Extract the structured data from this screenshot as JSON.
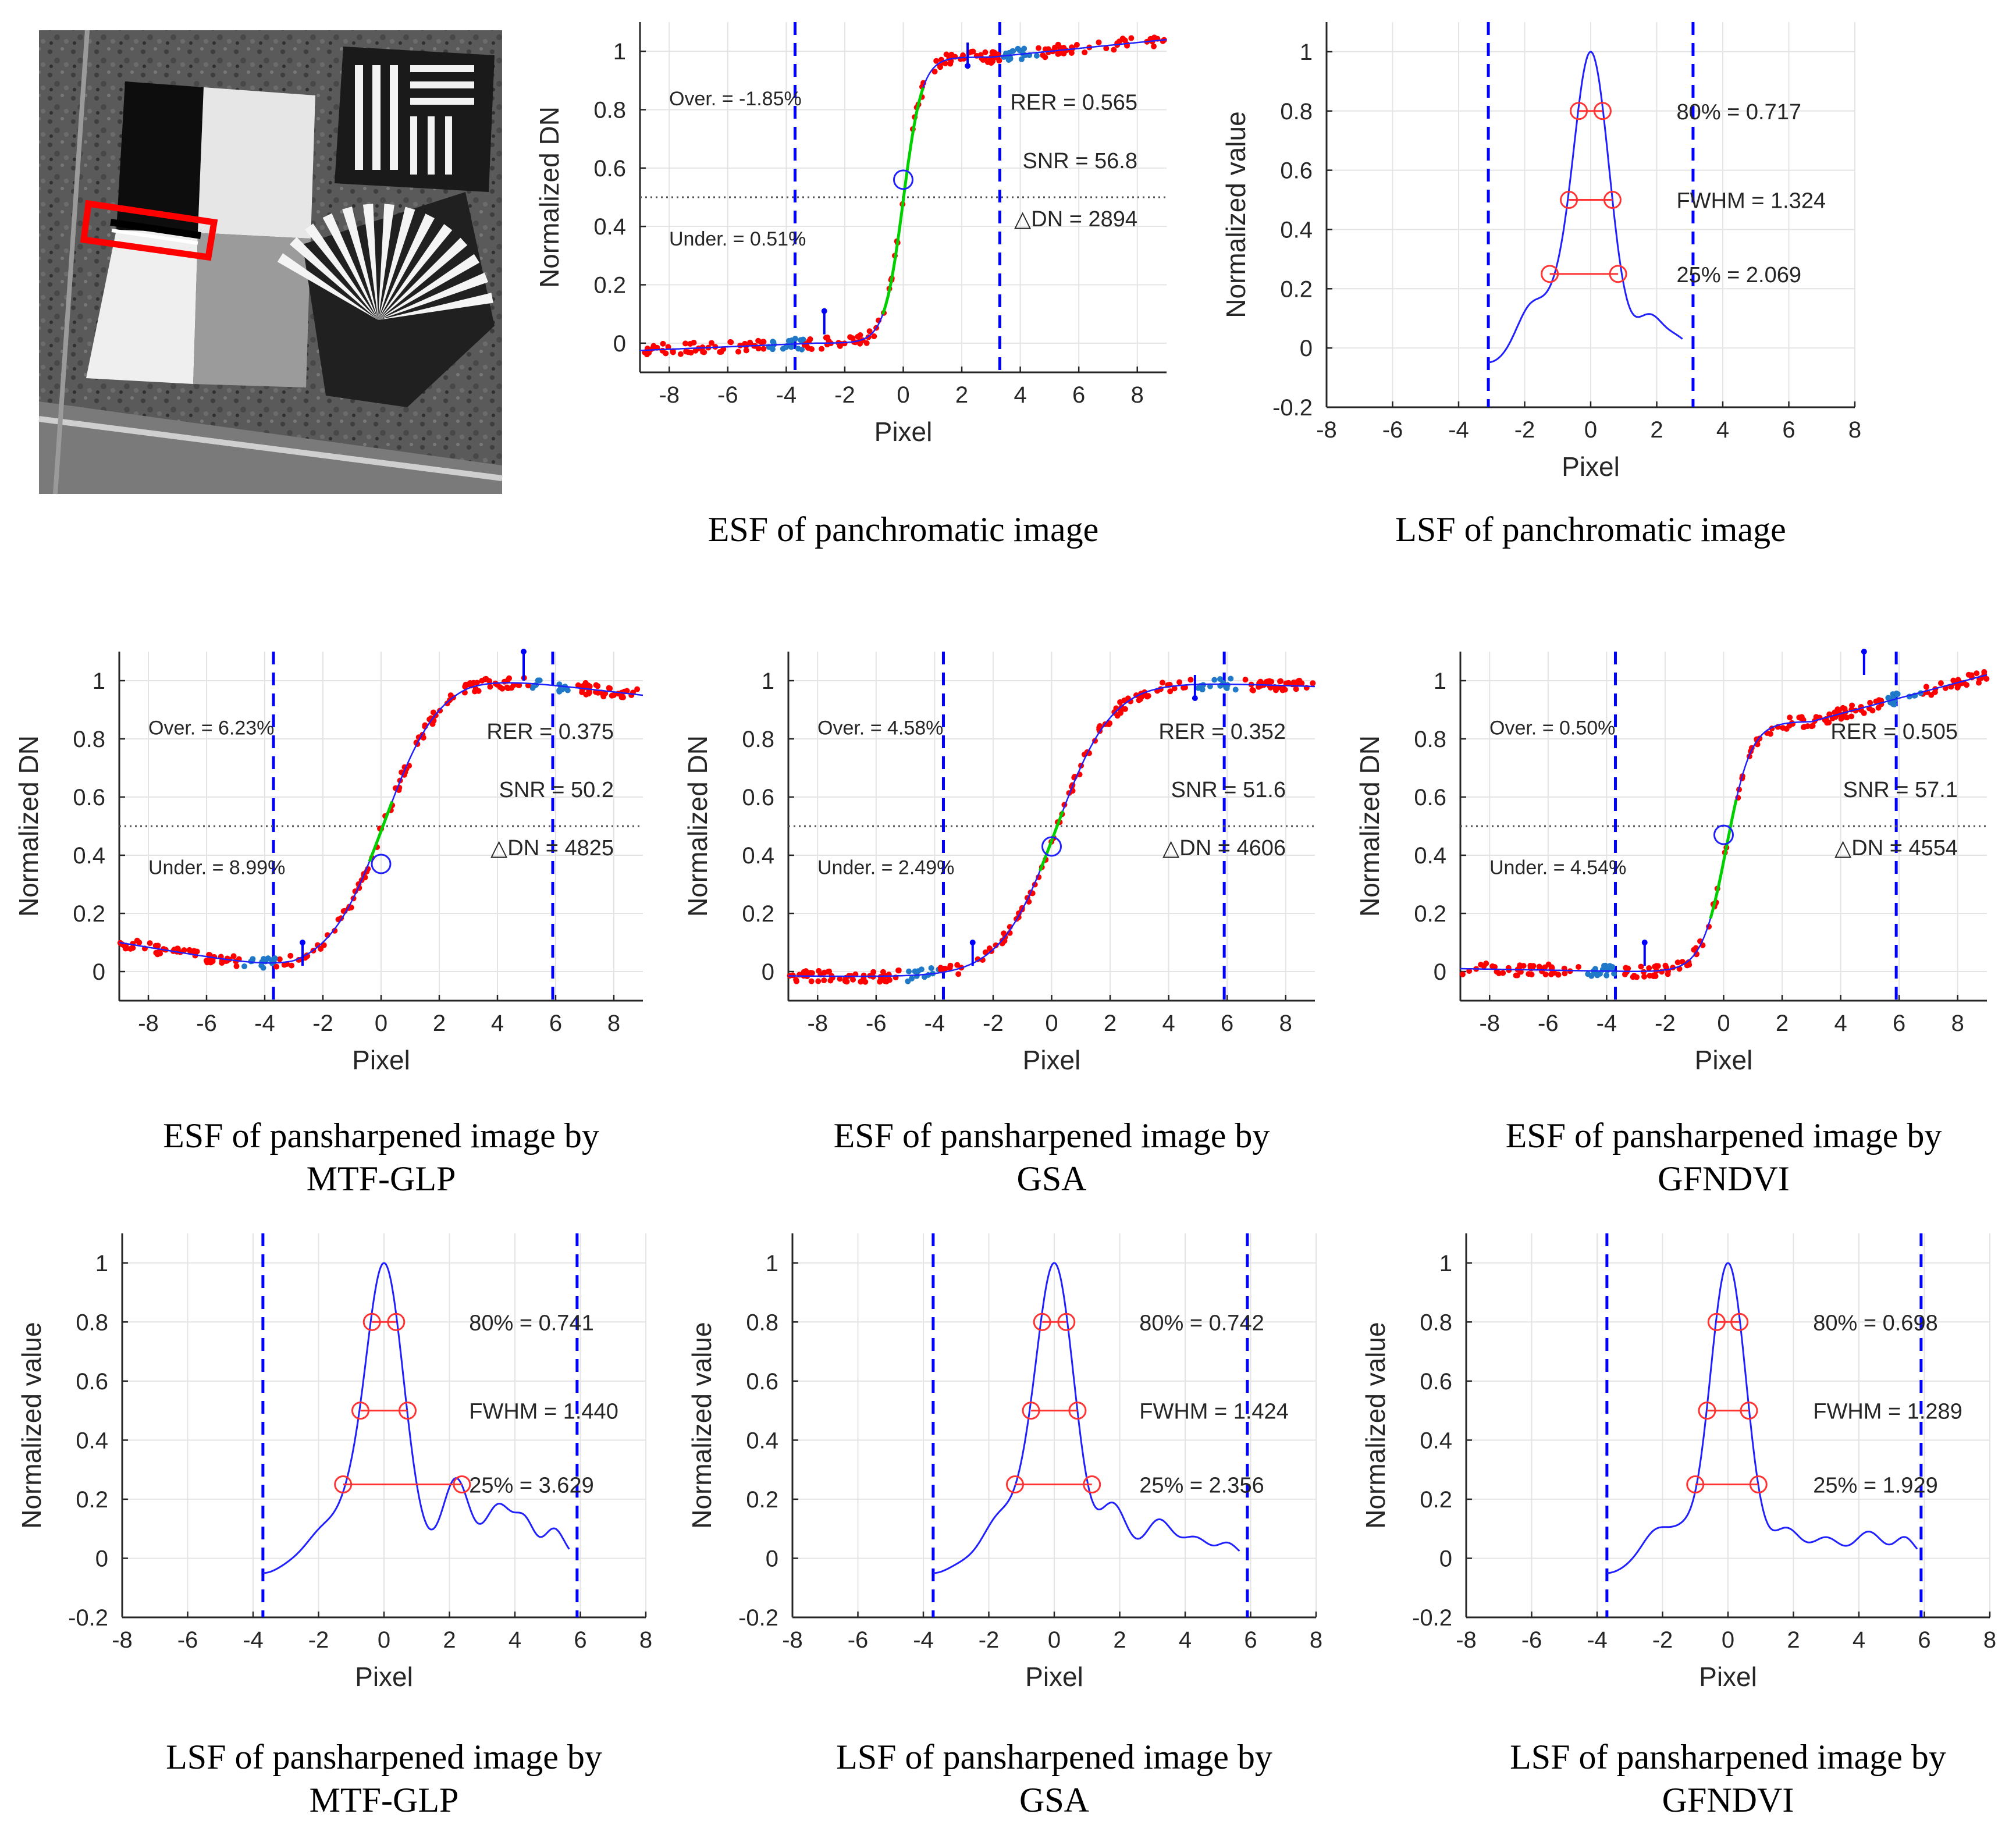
{
  "figure": {
    "thumbnail": {
      "highlight_color": "#ff0000"
    },
    "colors": {
      "axis": "#262626",
      "grid": "#e4e4e4",
      "fit_curve": "#2020ff",
      "dashed_lines": "#0000ff",
      "red_points": "#ff0000",
      "blue_points": "#1f78c8",
      "green_segment": "#00d000",
      "lsf_markers": "#ff3333",
      "threshold_line": "#555555"
    }
  },
  "chart_data": [
    {
      "id": "esf-pan",
      "type": "scatter",
      "caption": [
        "ESF of panchromatic image"
      ],
      "xlabel": "Pixel",
      "ylabel": "Normalized DN",
      "xlim": [
        -9,
        9
      ],
      "ylim": [
        -0.1,
        1.1
      ],
      "xticks": [
        -8,
        -6,
        -4,
        -2,
        0,
        2,
        4,
        6,
        8
      ],
      "yticks": [
        0,
        0.2,
        0.4,
        0.6,
        0.8,
        1
      ],
      "grid": true,
      "curve": {
        "center": 0,
        "width": 0.32,
        "lowLeft": -0.025,
        "lowRight": 0.0,
        "highLeft": 0.98,
        "highRight": 1.04,
        "point_count": 220
      },
      "half_max_marker": {
        "x": 0,
        "y": 0.56
      },
      "green_range": [
        -0.7,
        0.7
      ],
      "blue_point_ranges": [
        [
          -4.6,
          -3.4
        ],
        [
          3.4,
          4.6
        ]
      ],
      "threshold_y": 0.5,
      "dashed_x": [
        -3.7,
        3.3
      ],
      "arrows": [
        {
          "x": -2.7,
          "y_from": 0.03,
          "y_to": 0.11
        },
        {
          "x": 2.2,
          "y_from": 1.03,
          "y_to": 0.95
        }
      ],
      "annotations": {
        "over": "Over. = -1.85%",
        "under": "Under. = 0.51%",
        "rer": "RER = 0.565",
        "snr": "SNR = 56.8",
        "ddn": "△DN = 2894"
      }
    },
    {
      "id": "lsf-pan",
      "type": "line",
      "caption": [
        "LSF of panchromatic image"
      ],
      "xlabel": "Pixel",
      "ylabel": "Normalized value",
      "xlim": [
        -8,
        8
      ],
      "ylim": [
        -0.2,
        1.1
      ],
      "xticks": [
        -8,
        -6,
        -4,
        -2,
        0,
        2,
        4,
        6,
        8
      ],
      "yticks": [
        -0.2,
        0,
        0.2,
        0.4,
        0.6,
        0.8,
        1
      ],
      "grid": true,
      "sigma": 0.56,
      "range": [
        -3.1,
        2.8
      ],
      "ripples": [
        [
          -1.8,
          0.14,
          0.42
        ],
        [
          -1.0,
          0.1,
          0.4
        ],
        [
          1.8,
          0.11,
          0.4
        ],
        [
          2.6,
          0.03,
          0.3
        ]
      ],
      "dashed_x": [
        -3.1,
        3.1
      ],
      "widths": [
        {
          "level": 0.8,
          "x1": -0.36,
          "x2": 0.36
        },
        {
          "level": 0.5,
          "x1": -0.66,
          "x2": 0.66
        },
        {
          "level": 0.25,
          "x1": -1.24,
          "x2": 0.83
        }
      ],
      "annotations": {
        "p80": "80% = 0.717",
        "fwhm": "FWHM = 1.324",
        "p25": "25% = 2.069"
      }
    },
    {
      "id": "esf-mtfglp",
      "type": "scatter",
      "caption": [
        "ESF of pansharpened image by",
        "MTF-GLP"
      ],
      "xlabel": "Pixel",
      "ylabel": "Normalized DN",
      "xlim": [
        -9,
        9
      ],
      "ylim": [
        -0.1,
        1.1
      ],
      "xticks": [
        -8,
        -6,
        -4,
        -2,
        0,
        2,
        4,
        6,
        8
      ],
      "yticks": [
        0,
        0.2,
        0.4,
        0.6,
        0.8,
        1
      ],
      "grid": true,
      "curve": {
        "center": 0.1,
        "width": 0.95,
        "lowLeft": 0.1,
        "lowRight": 0.0,
        "highLeft": 1.02,
        "highRight": 0.95,
        "point_count": 220
      },
      "half_max_marker": {
        "x": 0,
        "y": 0.37
      },
      "green_range": [
        -0.4,
        0.4
      ],
      "blue_point_ranges": [
        [
          -4.8,
          -3.6
        ],
        [
          5.2,
          6.6
        ]
      ],
      "threshold_y": 0.5,
      "dashed_x": [
        -3.7,
        5.9
      ],
      "arrows": [
        {
          "x": -2.7,
          "y_from": 0.02,
          "y_to": 0.1
        },
        {
          "x": 4.9,
          "y_from": 1.0,
          "y_to": 1.1
        }
      ],
      "annotations": {
        "over": "Over. = 6.23%",
        "under": "Under. = 8.99%",
        "rer": "RER = 0.375",
        "snr": "SNR = 50.2",
        "ddn": "△DN = 4825"
      }
    },
    {
      "id": "esf-gsa",
      "type": "scatter",
      "caption": [
        "ESF of pansharpened image by",
        "GSA"
      ],
      "xlabel": "Pixel",
      "ylabel": "Normalized DN",
      "xlim": [
        -9,
        9
      ],
      "ylim": [
        -0.1,
        1.1
      ],
      "xticks": [
        -8,
        -6,
        -4,
        -2,
        0,
        2,
        4,
        6,
        8
      ],
      "yticks": [
        0,
        0.2,
        0.4,
        0.6,
        0.8,
        1
      ],
      "grid": true,
      "curve": {
        "center": 0.15,
        "width": 0.95,
        "lowLeft": -0.015,
        "lowRight": -0.02,
        "highLeft": 1.0,
        "highRight": 0.98,
        "point_count": 220
      },
      "half_max_marker": {
        "x": 0,
        "y": 0.43
      },
      "green_range": [
        -0.4,
        0.4
      ],
      "blue_point_ranges": [
        [
          -5.0,
          -3.8
        ],
        [
          5.0,
          6.4
        ]
      ],
      "threshold_y": 0.5,
      "dashed_x": [
        -3.7,
        5.9
      ],
      "arrows": [
        {
          "x": -2.7,
          "y_from": 0.02,
          "y_to": 0.1
        },
        {
          "x": 4.9,
          "y_from": 1.02,
          "y_to": 0.94
        }
      ],
      "annotations": {
        "over": "Over. = 4.58%",
        "under": "Under. = 2.49%",
        "rer": "RER = 0.352",
        "snr": "SNR = 51.6",
        "ddn": "△DN = 4606"
      }
    },
    {
      "id": "esf-gfndvi",
      "type": "scatter",
      "caption": [
        "ESF of pansharpened image by",
        "GFNDVI"
      ],
      "xlabel": "Pixel",
      "ylabel": "Normalized DN",
      "xlim": [
        -9,
        9
      ],
      "ylim": [
        -0.1,
        1.1
      ],
      "xticks": [
        -8,
        -6,
        -4,
        -2,
        0,
        2,
        4,
        6,
        8
      ],
      "yticks": [
        0,
        0.2,
        0.4,
        0.6,
        0.8,
        1
      ],
      "grid": true,
      "curve": {
        "center": 0.1,
        "width": 0.42,
        "lowLeft": 0.01,
        "lowRight": 0.0,
        "highLeft": 0.86,
        "highRight": 1.02,
        "point_count": 220
      },
      "half_max_marker": {
        "x": 0,
        "y": 0.47
      },
      "green_range": [
        -0.45,
        0.45
      ],
      "blue_point_ranges": [
        [
          -4.8,
          -3.6
        ],
        [
          5.4,
          6.8
        ]
      ],
      "threshold_y": 0.5,
      "dashed_x": [
        -3.7,
        5.9
      ],
      "arrows": [
        {
          "x": -2.7,
          "y_from": 0.02,
          "y_to": 0.1
        },
        {
          "x": 4.8,
          "y_from": 1.02,
          "y_to": 1.1
        }
      ],
      "annotations": {
        "over": "Over. = 0.50%",
        "under": "Under. = 4.54%",
        "rer": "RER = 0.505",
        "snr": "SNR = 57.1",
        "ddn": "△DN = 4554"
      }
    },
    {
      "id": "lsf-mtfglp",
      "type": "line",
      "caption": [
        "LSF of pansharpened image by",
        "MTF-GLP"
      ],
      "xlabel": "Pixel",
      "ylabel": "Normalized value",
      "xlim": [
        -8,
        8
      ],
      "ylim": [
        -0.2,
        1.1
      ],
      "xticks": [
        -8,
        -6,
        -4,
        -2,
        0,
        2,
        4,
        6,
        8
      ],
      "yticks": [
        -0.2,
        0,
        0.2,
        0.4,
        0.6,
        0.8,
        1
      ],
      "grid": true,
      "sigma": 0.6,
      "range": [
        -3.7,
        5.7
      ],
      "ripples": [
        [
          -1.8,
          0.1,
          0.5
        ],
        [
          -1.0,
          0.09,
          0.4
        ],
        [
          2.2,
          0.27,
          0.4
        ],
        [
          3.5,
          0.18,
          0.4
        ],
        [
          4.3,
          0.12,
          0.3
        ],
        [
          5.2,
          0.1,
          0.3
        ]
      ],
      "dashed_x": [
        -3.7,
        5.9
      ],
      "widths": [
        {
          "level": 0.8,
          "x1": -0.37,
          "x2": 0.37
        },
        {
          "level": 0.5,
          "x1": -0.72,
          "x2": 0.72
        },
        {
          "level": 0.25,
          "x1": -1.25,
          "x2": 2.38
        }
      ],
      "annotations": {
        "p80": "80% = 0.741",
        "fwhm": "FWHM = 1.440",
        "p25": "25% = 3.629"
      }
    },
    {
      "id": "lsf-gsa",
      "type": "line",
      "caption": [
        "LSF of pansharpened image by",
        "GSA"
      ],
      "xlabel": "Pixel",
      "ylabel": "Normalized value",
      "xlim": [
        -8,
        8
      ],
      "ylim": [
        -0.2,
        1.1
      ],
      "xticks": [
        -8,
        -6,
        -4,
        -2,
        0,
        2,
        4,
        6,
        8
      ],
      "yticks": [
        -0.2,
        0,
        0.2,
        0.4,
        0.6,
        0.8,
        1
      ],
      "grid": true,
      "sigma": 0.6,
      "range": [
        -3.7,
        5.7
      ],
      "ripples": [
        [
          -1.7,
          0.13,
          0.45
        ],
        [
          -0.9,
          0.08,
          0.4
        ],
        [
          1.8,
          0.18,
          0.4
        ],
        [
          3.2,
          0.13,
          0.4
        ],
        [
          4.3,
          0.07,
          0.4
        ],
        [
          5.3,
          0.05,
          0.3
        ]
      ],
      "dashed_x": [
        -3.7,
        5.9
      ],
      "widths": [
        {
          "level": 0.8,
          "x1": -0.37,
          "x2": 0.37
        },
        {
          "level": 0.5,
          "x1": -0.71,
          "x2": 0.71
        },
        {
          "level": 0.25,
          "x1": -1.2,
          "x2": 1.15
        }
      ],
      "annotations": {
        "p80": "80% = 0.742",
        "fwhm": "FWHM = 1.424",
        "p25": "25% = 2.356"
      }
    },
    {
      "id": "lsf-gfndvi",
      "type": "line",
      "caption": [
        "LSF of pansharpened image by",
        "GFNDVI"
      ],
      "xlabel": "Pixel",
      "ylabel": "Normalized value",
      "xlim": [
        -8,
        8
      ],
      "ylim": [
        -0.2,
        1.1
      ],
      "xticks": [
        -8,
        -6,
        -4,
        -2,
        0,
        2,
        4,
        6,
        8
      ],
      "yticks": [
        -0.2,
        0,
        0.2,
        0.4,
        0.6,
        0.8,
        1
      ],
      "grid": true,
      "sigma": 0.55,
      "range": [
        -3.7,
        5.8
      ],
      "ripples": [
        [
          -2.2,
          0.09,
          0.4
        ],
        [
          -1.4,
          0.08,
          0.4
        ],
        [
          1.8,
          0.1,
          0.4
        ],
        [
          3.0,
          0.07,
          0.4
        ],
        [
          4.3,
          0.09,
          0.4
        ],
        [
          5.4,
          0.07,
          0.3
        ]
      ],
      "dashed_x": [
        -3.7,
        5.9
      ],
      "widths": [
        {
          "level": 0.8,
          "x1": -0.35,
          "x2": 0.35
        },
        {
          "level": 0.5,
          "x1": -0.64,
          "x2": 0.64
        },
        {
          "level": 0.25,
          "x1": -1.0,
          "x2": 0.93
        }
      ],
      "annotations": {
        "p80": "80% = 0.698",
        "fwhm": "FWHM = 1.289",
        "p25": "25% = 1.929"
      }
    }
  ]
}
